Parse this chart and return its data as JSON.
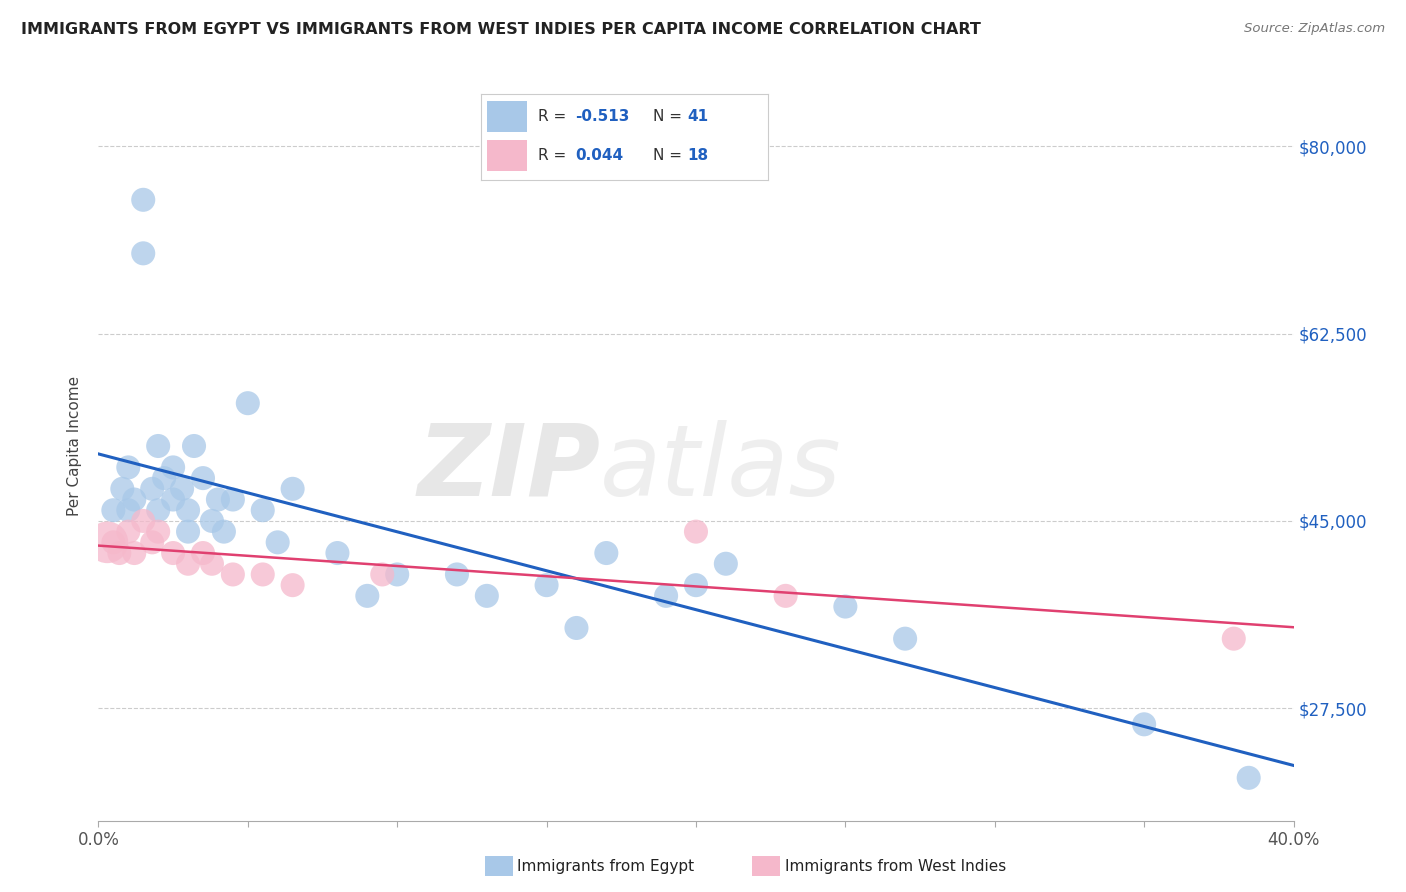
{
  "title": "IMMIGRANTS FROM EGYPT VS IMMIGRANTS FROM WEST INDIES PER CAPITA INCOME CORRELATION CHART",
  "source": "Source: ZipAtlas.com",
  "ylabel": "Per Capita Income",
  "xlim": [
    0.0,
    0.4
  ],
  "ylim": [
    17000,
    87000
  ],
  "yticks": [
    27500,
    45000,
    62500,
    80000
  ],
  "xticks": [
    0.0,
    0.05,
    0.1,
    0.15,
    0.2,
    0.25,
    0.3,
    0.35,
    0.4
  ],
  "xtick_labels_show": [
    "0.0%",
    "",
    "",
    "",
    "",
    "",
    "",
    "",
    "40.0%"
  ],
  "ytick_labels": [
    "$27,500",
    "$45,000",
    "$62,500",
    "$80,000"
  ],
  "egypt_R": -0.513,
  "egypt_N": 41,
  "wi_R": 0.044,
  "wi_N": 18,
  "egypt_color": "#a8c8e8",
  "wi_color": "#f5b8cb",
  "egypt_line_color": "#2060c0",
  "wi_line_color": "#e04070",
  "background_color": "#ffffff",
  "egypt_x": [
    0.005,
    0.008,
    0.01,
    0.01,
    0.012,
    0.015,
    0.015,
    0.018,
    0.02,
    0.02,
    0.022,
    0.025,
    0.025,
    0.028,
    0.03,
    0.03,
    0.032,
    0.035,
    0.038,
    0.04,
    0.042,
    0.045,
    0.05,
    0.055,
    0.06,
    0.065,
    0.08,
    0.09,
    0.1,
    0.12,
    0.13,
    0.15,
    0.16,
    0.17,
    0.19,
    0.2,
    0.21,
    0.25,
    0.27,
    0.35,
    0.385
  ],
  "egypt_y": [
    46000,
    48000,
    46000,
    50000,
    47000,
    75000,
    70000,
    48000,
    46000,
    52000,
    49000,
    47000,
    50000,
    48000,
    46000,
    44000,
    52000,
    49000,
    45000,
    47000,
    44000,
    47000,
    56000,
    46000,
    43000,
    48000,
    42000,
    38000,
    40000,
    40000,
    38000,
    39000,
    35000,
    42000,
    38000,
    39000,
    41000,
    37000,
    34000,
    26000,
    21000
  ],
  "wi_x": [
    0.005,
    0.007,
    0.01,
    0.012,
    0.015,
    0.018,
    0.02,
    0.025,
    0.03,
    0.035,
    0.038,
    0.045,
    0.055,
    0.065,
    0.095,
    0.2,
    0.23,
    0.38
  ],
  "wi_y": [
    43000,
    42000,
    44000,
    42000,
    45000,
    43000,
    44000,
    42000,
    41000,
    42000,
    41000,
    40000,
    40000,
    39000,
    40000,
    44000,
    38000,
    34000
  ],
  "wi_large_x": [
    0.003
  ],
  "wi_large_y": [
    43000
  ]
}
